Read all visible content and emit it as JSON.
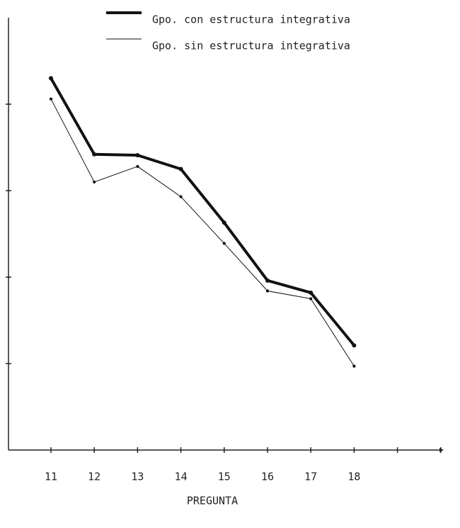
{
  "chart_data": {
    "type": "line",
    "x_label": "PREGUNTA",
    "categories": [
      "11",
      "12",
      "13",
      "14",
      "15",
      "16",
      "17",
      "18",
      null,
      null
    ],
    "series": [
      {
        "name": "Gpo. con estructura integrativa",
        "color": "#111111",
        "line_width": 4,
        "values": [
          4.3,
          3.42,
          3.41,
          3.25,
          2.63,
          1.96,
          1.82,
          1.21,
          null,
          null
        ]
      },
      {
        "name": "Gpo. sin estructura integrativa",
        "color": "#111111",
        "line_width": 1,
        "values": [
          4.06,
          3.1,
          3.28,
          2.93,
          2.39,
          1.84,
          1.75,
          0.97,
          null,
          null
        ]
      }
    ],
    "ylim": [
      0,
      5
    ],
    "yticks": [
      1,
      2,
      3,
      4
    ],
    "grid": false,
    "legend": "top-right"
  }
}
